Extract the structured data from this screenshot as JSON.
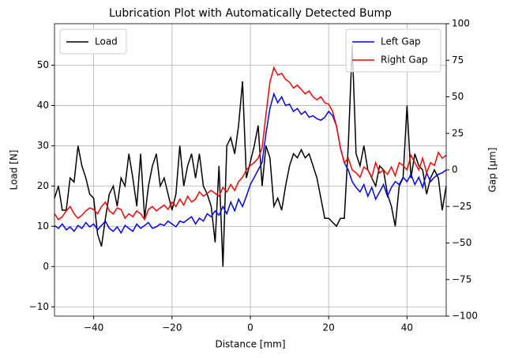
{
  "chart_data": {
    "type": "line",
    "title": "Lubrication Plot with Automatically Detected Bump",
    "xlabel": "Distance [mm]",
    "ylabel": "Load [N]",
    "y2label": "Gap [µm]",
    "x": [
      -50,
      -49,
      -48,
      -47,
      -46,
      -45,
      -44,
      -43,
      -42,
      -41,
      -40,
      -39,
      -38,
      -37,
      -36,
      -35,
      -34,
      -33,
      -32,
      -31,
      -30,
      -29,
      -28,
      -27,
      -26,
      -25,
      -24,
      -23,
      -22,
      -21,
      -20,
      -19,
      -18,
      -17,
      -16,
      -15,
      -14,
      -13,
      -12,
      -11,
      -10,
      -9,
      -8,
      -7,
      -6,
      -5,
      -4,
      -3,
      -2,
      -1,
      0,
      1,
      2,
      3,
      4,
      5,
      6,
      7,
      8,
      9,
      10,
      11,
      12,
      13,
      14,
      15,
      16,
      17,
      18,
      19,
      20,
      21,
      22,
      23,
      24,
      25,
      26,
      27,
      28,
      29,
      30,
      31,
      32,
      33,
      34,
      35,
      36,
      37,
      38,
      39,
      40,
      41,
      42,
      43,
      44,
      45,
      46,
      47,
      48,
      49,
      50
    ],
    "series": [
      {
        "name": "Load",
        "color": "#000000",
        "axis": "y",
        "values": [
          17,
          20,
          14,
          14,
          22,
          21,
          30,
          25,
          22,
          18,
          17,
          8,
          5,
          12,
          18,
          20,
          15,
          22,
          20,
          28,
          22,
          15,
          28,
          12,
          20,
          25,
          28,
          20,
          22,
          18,
          14,
          18,
          30,
          20,
          25,
          28,
          22,
          28,
          20,
          18,
          15,
          6,
          25,
          0,
          30,
          32,
          28,
          35,
          46,
          22,
          26,
          30,
          35,
          20,
          30,
          27,
          15,
          17,
          14,
          20,
          25,
          28,
          27,
          29,
          27,
          28,
          25,
          22,
          17,
          12,
          12,
          11,
          10,
          12,
          12,
          30,
          55,
          28,
          25,
          30,
          24,
          22,
          20,
          25,
          24,
          18,
          15,
          10,
          20,
          22,
          40,
          22,
          28,
          25,
          24,
          18,
          22,
          24,
          22,
          14,
          20
        ]
      },
      {
        "name": "Left Gap",
        "color": "#0000ff",
        "axis": "y2",
        "values": [
          -38,
          -40,
          -37,
          -41,
          -39,
          -42,
          -38,
          -40,
          -36,
          -39,
          -37,
          -41,
          -38,
          -35,
          -40,
          -42,
          -39,
          -43,
          -38,
          -40,
          -42,
          -37,
          -40,
          -38,
          -36,
          -40,
          -39,
          -37,
          -38,
          -35,
          -37,
          -39,
          -35,
          -36,
          -34,
          -32,
          -37,
          -33,
          -35,
          -30,
          -32,
          -28,
          -31,
          -25,
          -30,
          -22,
          -28,
          -20,
          -25,
          -18,
          -10,
          -5,
          0,
          5,
          25,
          42,
          52,
          46,
          50,
          44,
          45,
          40,
          42,
          38,
          40,
          36,
          37,
          35,
          34,
          36,
          40,
          37,
          30,
          15,
          5,
          0,
          -8,
          -12,
          -15,
          -10,
          -18,
          -12,
          -20,
          -15,
          -10,
          -18,
          -12,
          -8,
          -10,
          -5,
          -8,
          -3,
          -10,
          -5,
          -12,
          -2,
          -8,
          -5,
          -3,
          -2,
          0
        ]
      },
      {
        "name": "Right Gap",
        "color": "#ff0000",
        "axis": "y2",
        "values": [
          -30,
          -34,
          -32,
          -28,
          -25,
          -30,
          -33,
          -31,
          -28,
          -26,
          -27,
          -30,
          -25,
          -22,
          -28,
          -30,
          -26,
          -27,
          -33,
          -30,
          -32,
          -28,
          -30,
          -34,
          -27,
          -25,
          -28,
          -26,
          -24,
          -27,
          -22,
          -25,
          -20,
          -24,
          -18,
          -22,
          -20,
          -15,
          -18,
          -16,
          -14,
          -16,
          -18,
          -12,
          -15,
          -10,
          -14,
          -8,
          -5,
          0,
          3,
          5,
          8,
          15,
          38,
          60,
          70,
          65,
          66,
          62,
          60,
          56,
          58,
          55,
          52,
          54,
          50,
          48,
          50,
          46,
          45,
          40,
          30,
          15,
          5,
          8,
          0,
          -2,
          -5,
          2,
          0,
          -5,
          5,
          -2,
          0,
          -3,
          2,
          -4,
          5,
          3,
          0,
          10,
          5,
          0,
          8,
          -2,
          5,
          3,
          12,
          8,
          10
        ]
      }
    ],
    "xlim": [
      -50,
      50
    ],
    "xticks": [
      {
        "value": -40,
        "label": "−40"
      },
      {
        "value": -20,
        "label": "−20"
      },
      0,
      20,
      40
    ],
    "ylim": [
      -12.3,
      60.3
    ],
    "yticks": [
      {
        "value": -10,
        "label": "−10"
      },
      0,
      10,
      20,
      30,
      40,
      50
    ],
    "y2lim": [
      -100,
      100
    ],
    "y2ticks": [
      {
        "value": -100,
        "label": "−100"
      },
      {
        "value": -75,
        "label": "−75"
      },
      {
        "value": -50,
        "label": "−50"
      },
      {
        "value": -25,
        "label": "−25"
      },
      0,
      25,
      50,
      75,
      100
    ],
    "grid": true,
    "legend": [
      "upper left",
      "upper right"
    ]
  }
}
